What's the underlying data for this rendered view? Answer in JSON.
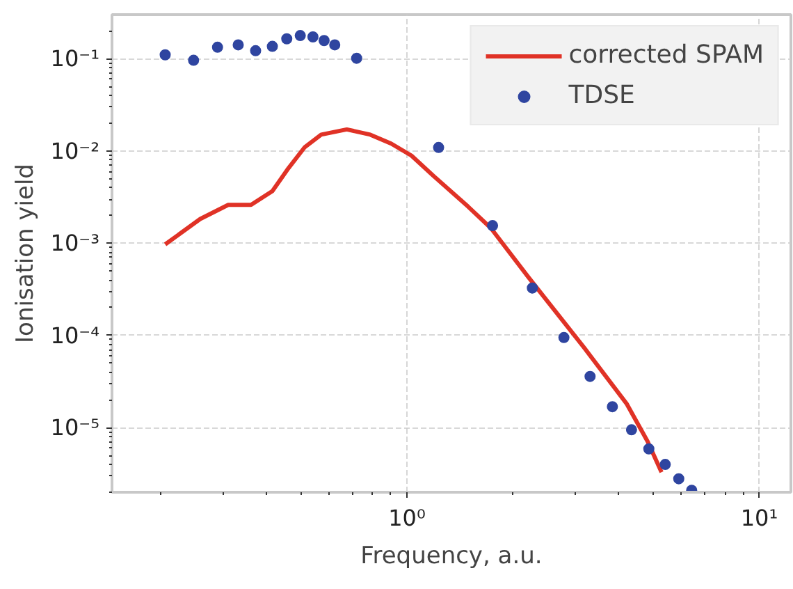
{
  "chart_data": {
    "type": "line",
    "xlabel": "Frequency, a.u.",
    "ylabel": "Ionisation yield",
    "log": "xy",
    "xlim": [
      0.1455,
      12.3
    ],
    "ylim": [
      2e-06,
      0.3
    ],
    "xticks": [
      {
        "value": 1,
        "label": "10⁰"
      },
      {
        "value": 10,
        "label": "10¹"
      }
    ],
    "yticks": [
      {
        "value": 0.1,
        "label": "10⁻¹"
      },
      {
        "value": 0.01,
        "label": "10⁻²"
      },
      {
        "value": 0.001,
        "label": "10⁻³"
      },
      {
        "value": 0.0001,
        "label": "10⁻⁴"
      },
      {
        "value": 1e-05,
        "label": "10⁻⁵"
      }
    ],
    "grid": true,
    "legend": "top right",
    "series": [
      {
        "name": "corrected SPAM",
        "color": "#e03226",
        "line_style": "solid",
        "x": [
          0.206,
          0.259,
          0.311,
          0.361,
          0.415,
          0.461,
          0.513,
          0.571,
          0.675,
          0.787,
          0.902,
          1.03,
          1.2,
          1.49,
          1.73,
          2.21,
          3.19,
          4.2,
          4.82,
          5.28
        ],
        "values": [
          0.00097,
          0.00183,
          0.0026,
          0.0026,
          0.00367,
          0.0065,
          0.011,
          0.015,
          0.0171,
          0.015,
          0.012,
          0.0089,
          0.0052,
          0.0025,
          0.00146,
          0.00043,
          7.3e-05,
          1.83e-05,
          7.1e-06,
          3.3e-06
        ]
      },
      {
        "name": "TDSE",
        "type": "scatter",
        "color": "#2f45a0",
        "marker": "circle",
        "x": [
          0.206,
          0.248,
          0.29,
          0.332,
          0.372,
          0.415,
          0.456,
          0.498,
          0.541,
          0.582,
          0.624,
          0.72,
          1.23,
          1.75,
          2.27,
          2.79,
          3.31,
          3.83,
          4.34,
          4.86,
          5.41,
          5.91,
          6.43
        ],
        "values": [
          0.11,
          0.096,
          0.133,
          0.141,
          0.122,
          0.136,
          0.164,
          0.178,
          0.172,
          0.157,
          0.141,
          0.101,
          0.0109,
          0.00155,
          0.000327,
          9.5e-05,
          3.6e-05,
          1.69e-05,
          9.5e-06,
          5.9e-06,
          4e-06,
          2.8e-06,
          2.1e-06
        ]
      }
    ]
  }
}
